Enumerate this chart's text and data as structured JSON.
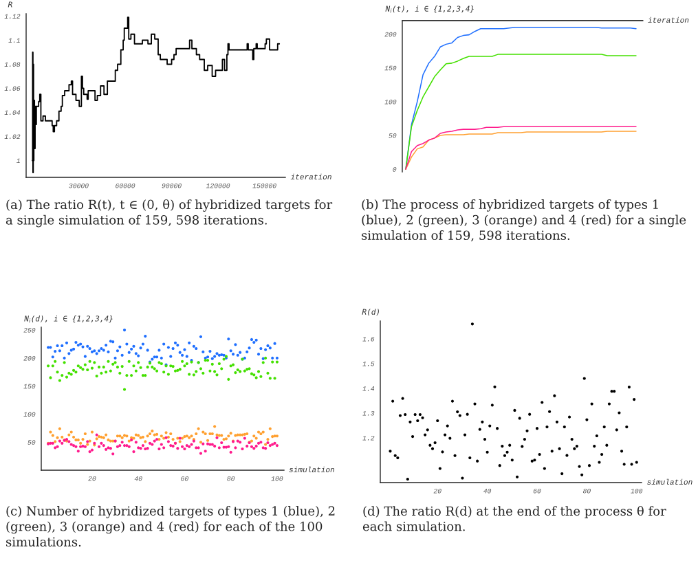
{
  "chart_data": [
    {
      "type": "step",
      "ylabel": "R",
      "xlabel": "iteration",
      "color": "#000000",
      "x": [
        0,
        200,
        400,
        600,
        800,
        1000,
        1400,
        1800,
        2200,
        2600,
        4080,
        4800,
        5530,
        6900,
        8450,
        12800,
        13500,
        14300,
        15700,
        17200,
        18600,
        19400,
        20900,
        23700,
        25200,
        26000,
        28200,
        30300,
        31700,
        32400,
        33200,
        35400,
        36100,
        39000,
        40500,
        42000,
        44100,
        46300,
        48500,
        52900,
        53600,
        55100,
        57200,
        58700,
        59400,
        61600,
        62300,
        63700,
        66000,
        71100,
        74700,
        76900,
        79100,
        81300,
        82700,
        87100,
        90000,
        91500,
        92900,
        101600,
        103100,
        106000,
        108100,
        111100,
        113300,
        116200,
        118400,
        122800,
        124200,
        125700,
        126400,
        127100,
        138800,
        139500,
        142400,
        143100,
        144600,
        145300,
        147500,
        150400,
        151200,
        153300,
        154000,
        158500,
        159598
      ],
      "values": [
        1.0,
        1.09,
        0.99,
        1.08,
        1.0,
        1.05,
        1.01,
        1.045,
        1.03,
        1.045,
        1.049,
        1.055,
        1.033,
        1.037,
        1.033,
        1.029,
        1.024,
        1.029,
        1.033,
        1.041,
        1.045,
        1.054,
        1.058,
        1.063,
        1.066,
        1.055,
        1.05,
        1.045,
        1.07,
        1.06,
        1.055,
        1.051,
        1.058,
        1.058,
        1.05,
        1.054,
        1.062,
        1.055,
        1.066,
        1.066,
        1.075,
        1.08,
        1.092,
        1.1,
        1.11,
        1.119,
        1.101,
        1.105,
        1.097,
        1.1,
        1.097,
        1.105,
        1.101,
        1.088,
        1.084,
        1.08,
        1.084,
        1.088,
        1.093,
        1.1,
        1.093,
        1.088,
        1.084,
        1.075,
        1.079,
        1.07,
        1.075,
        1.084,
        1.075,
        1.088,
        1.097,
        1.092,
        1.097,
        1.092,
        1.084,
        1.093,
        1.097,
        1.093,
        1.093,
        1.097,
        1.101,
        1.092,
        1.092,
        1.097,
        1.097
      ],
      "xlim": [
        -4000,
        163500
      ],
      "ylim": [
        0.986,
        1.122
      ],
      "xticks": [
        30000,
        60000,
        90000,
        120000,
        150000
      ],
      "yticks": [
        1,
        1.02,
        1.04,
        1.06,
        1.08,
        1.1,
        1.12
      ],
      "annotations": [
        "(a) The ratio R(t), t ∈ (0, θ) of hybridized targets for a single simulation of 159, 598 iterations."
      ]
    },
    {
      "type": "line",
      "ylabel": "N$_{i}$(t), i ∈ {1,2,3,4}",
      "xlabel": "iteration",
      "categories": [
        null,
        null,
        null,
        null,
        null,
        null,
        null,
        null,
        null,
        null,
        null,
        null,
        null,
        null,
        null,
        null,
        null,
        null,
        null,
        null,
        null,
        null,
        null,
        null,
        null,
        null,
        null,
        null,
        null,
        null,
        null,
        null,
        null,
        null,
        null,
        null,
        null,
        null,
        null,
        null,
        null
      ],
      "series": [
        {
          "color": "#1f6fff",
          "values": [
            0,
            66,
            100,
            140,
            157,
            167,
            181,
            185,
            187,
            195,
            198,
            199,
            204,
            208,
            208,
            208,
            208,
            208,
            209,
            210,
            210,
            210,
            210,
            210,
            210,
            210,
            210,
            210,
            210,
            210,
            210,
            210,
            210,
            210,
            209,
            209,
            209,
            209,
            209,
            209,
            208
          ]
        },
        {
          "color": "#44e000",
          "values": [
            0,
            63,
            87,
            107,
            122,
            137,
            147,
            156,
            157,
            160,
            164,
            167,
            167,
            167,
            167,
            167,
            170,
            170,
            170,
            170,
            170,
            170,
            170,
            170,
            170,
            170,
            170,
            170,
            170,
            170,
            170,
            170,
            170,
            170,
            170,
            168,
            168,
            168,
            168,
            168,
            168
          ]
        },
        {
          "color": "#ffa030",
          "values": [
            0,
            18,
            30,
            33,
            43,
            46,
            50,
            51,
            51,
            51,
            51,
            52,
            52,
            52,
            52,
            52,
            54,
            54,
            54,
            54,
            54,
            55,
            55,
            55,
            55,
            55,
            55,
            55,
            55,
            55,
            55,
            55,
            55,
            55,
            55,
            56,
            56,
            56,
            56,
            56,
            56
          ]
        },
        {
          "color": "#ff1a8c",
          "values": [
            0,
            26,
            35,
            38,
            43,
            46,
            53,
            55,
            56,
            58,
            59,
            59,
            59,
            60,
            62,
            62,
            62,
            63,
            63,
            63,
            63,
            63,
            63,
            63,
            63,
            63,
            63,
            63,
            63,
            63,
            63,
            63,
            63,
            63,
            63,
            63,
            63,
            63,
            63,
            63,
            63
          ]
        }
      ],
      "ylim": [
        -4,
        220
      ],
      "yticks": [
        0,
        50,
        100,
        150,
        200
      ],
      "tick_labels": "y",
      "ref_lines": [
        {
          "axis": "y",
          "value": 220
        }
      ],
      "annotations": [
        "(b) The process of hybridized targets of types 1 (blue), 2 (green), 3 (orange) and 4 (red) for a single simulation of 159, 598 iterations."
      ]
    },
    {
      "type": "scatter",
      "ylabel": "N$_{i}$(d), i ∈ {1,2,3,4}",
      "xlabel": "simulation",
      "marker": "circle",
      "x": [
        1,
        2,
        3,
        4,
        5,
        6,
        7,
        8,
        9,
        10,
        11,
        12,
        13,
        14,
        15,
        16,
        17,
        18,
        19,
        20,
        21,
        22,
        23,
        24,
        25,
        26,
        27,
        28,
        29,
        30,
        31,
        32,
        33,
        34,
        35,
        36,
        37,
        38,
        39,
        40,
        41,
        42,
        43,
        44,
        45,
        46,
        47,
        48,
        49,
        50,
        51,
        52,
        53,
        54,
        55,
        56,
        57,
        58,
        59,
        60,
        61,
        62,
        63,
        64,
        65,
        66,
        67,
        68,
        69,
        70,
        71,
        72,
        73,
        74,
        75,
        76,
        77,
        78,
        79,
        80,
        81,
        82,
        83,
        84,
        85,
        86,
        87,
        88,
        89,
        90,
        91,
        92,
        93,
        94,
        95,
        96,
        97,
        98,
        99,
        100
      ],
      "series": [
        {
          "color": "#1f6fff",
          "values": [
            219,
            219,
            202,
            212,
            222,
            213,
            222,
            200,
            227,
            208,
            214,
            216,
            228,
            223,
            225,
            220,
            203,
            221,
            217,
            211,
            213,
            208,
            213,
            217,
            214,
            223,
            211,
            230,
            229,
            200,
            213,
            220,
            205,
            250,
            225,
            210,
            216,
            221,
            208,
            204,
            218,
            225,
            239,
            214,
            193,
            198,
            202,
            202,
            214,
            200,
            225,
            188,
            219,
            203,
            217,
            227,
            223,
            210,
            205,
            215,
            203,
            227,
            196,
            221,
            217,
            192,
            238,
            211,
            200,
            202,
            212,
            199,
            203,
            208,
            205,
            206,
            205,
            200,
            234,
            213,
            207,
            224,
            205,
            210,
            198,
            200,
            211,
            218,
            233,
            228,
            232,
            207,
            217,
            199,
            215,
            222,
            218,
            200,
            226,
            200
          ]
        },
        {
          "color": "#44e000",
          "values": [
            186,
            165,
            186,
            194,
            175,
            160,
            169,
            192,
            166,
            173,
            171,
            178,
            175,
            186,
            183,
            180,
            188,
            179,
            194,
            182,
            192,
            168,
            184,
            173,
            184,
            175,
            194,
            177,
            189,
            192,
            184,
            173,
            185,
            144,
            169,
            194,
            169,
            186,
            177,
            192,
            183,
            169,
            169,
            184,
            191,
            184,
            181,
            177,
            192,
            190,
            175,
            186,
            171,
            186,
            185,
            177,
            178,
            180,
            194,
            186,
            190,
            171,
            193,
            170,
            176,
            192,
            181,
            173,
            196,
            196,
            177,
            189,
            176,
            170,
            190,
            181,
            198,
            203,
            162,
            186,
            188,
            174,
            179,
            176,
            198,
            177,
            180,
            181,
            172,
            170,
            165,
            176,
            167,
            192,
            200,
            173,
            164,
            193,
            164,
            193
          ]
        },
        {
          "color": "#ffa030",
          "values": [
            48,
            68,
            62,
            51,
            58,
            74,
            59,
            54,
            52,
            63,
            68,
            59,
            54,
            54,
            48,
            55,
            65,
            46,
            52,
            68,
            45,
            56,
            60,
            59,
            58,
            63,
            54,
            52,
            52,
            52,
            61,
            61,
            58,
            62,
            61,
            52,
            58,
            57,
            63,
            62,
            58,
            59,
            51,
            61,
            65,
            70,
            63,
            64,
            55,
            61,
            57,
            67,
            59,
            65,
            55,
            48,
            57,
            51,
            57,
            60,
            61,
            58,
            61,
            55,
            65,
            74,
            50,
            68,
            65,
            53,
            65,
            65,
            78,
            63,
            62,
            62,
            55,
            56,
            61,
            66,
            52,
            62,
            63,
            63,
            63,
            64,
            65,
            50,
            52,
            61,
            57,
            68,
            65,
            68,
            46,
            55,
            74,
            60,
            61,
            61
          ]
        },
        {
          "color": "#ff1a8c",
          "values": [
            47,
            48,
            48,
            40,
            42,
            52,
            48,
            53,
            55,
            51,
            46,
            44,
            42,
            34,
            42,
            43,
            42,
            51,
            33,
            36,
            48,
            63,
            42,
            48,
            44,
            37,
            40,
            39,
            29,
            52,
            42,
            44,
            50,
            44,
            44,
            42,
            54,
            33,
            50,
            40,
            39,
            44,
            38,
            39,
            48,
            46,
            52,
            55,
            38,
            46,
            40,
            58,
            51,
            44,
            43,
            48,
            39,
            57,
            42,
            38,
            44,
            42,
            46,
            52,
            40,
            40,
            30,
            47,
            34,
            47,
            46,
            46,
            43,
            58,
            40,
            49,
            41,
            41,
            42,
            32,
            51,
            40,
            52,
            50,
            38,
            57,
            43,
            49,
            42,
            39,
            43,
            48,
            50,
            40,
            39,
            49,
            44,
            46,
            48,
            44
          ]
        }
      ],
      "xlim": [
        -2,
        103
      ],
      "ylim": [
        0,
        255
      ],
      "xticks": [
        20,
        40,
        60,
        80,
        100
      ],
      "yticks": [
        50,
        100,
        150,
        200,
        250
      ],
      "annotations": [
        "(c) Number of hybridized targets of types 1 (blue), 2 (green), 3 (orange) and 4 (red) for each of the 100 simulations."
      ]
    },
    {
      "type": "scatter",
      "ylabel": "R(d)",
      "xlabel": "simulation",
      "marker": "circle",
      "color": "#000000",
      "x": [
        1,
        2,
        3,
        4,
        5,
        6,
        7,
        8,
        9,
        10,
        11,
        12,
        13,
        14,
        15,
        16,
        17,
        18,
        19,
        20,
        21,
        22,
        23,
        24,
        25,
        26,
        27,
        28,
        29,
        30,
        31,
        32,
        33,
        34,
        35,
        36,
        37,
        38,
        39,
        40,
        41,
        42,
        43,
        44,
        45,
        46,
        47,
        48,
        49,
        50,
        51,
        52,
        53,
        54,
        55,
        56,
        57,
        58,
        59,
        60,
        61,
        62,
        63,
        64,
        65,
        66,
        67,
        68,
        69,
        70,
        71,
        72,
        73,
        74,
        75,
        76,
        77,
        78,
        79,
        80,
        81,
        82,
        83,
        84,
        85,
        86,
        87,
        88,
        89,
        90,
        91,
        92,
        93,
        94,
        95,
        96,
        97,
        98,
        99,
        100
      ],
      "values": [
        1.146,
        1.348,
        1.128,
        1.119,
        1.29,
        1.359,
        1.294,
        1.033,
        1.264,
        1.205,
        1.294,
        1.269,
        1.294,
        1.281,
        1.212,
        1.232,
        1.17,
        1.156,
        1.18,
        1.269,
        1.076,
        1.143,
        1.212,
        1.248,
        1.198,
        1.348,
        1.128,
        1.305,
        1.29,
        1.037,
        1.212,
        1.295,
        1.119,
        1.66,
        1.337,
        1.106,
        1.234,
        1.264,
        1.194,
        1.142,
        1.248,
        1.332,
        1.406,
        1.238,
        1.088,
        1.166,
        1.128,
        1.142,
        1.17,
        1.11,
        1.311,
        1.042,
        1.279,
        1.165,
        1.194,
        1.228,
        1.295,
        1.106,
        1.11,
        1.238,
        1.133,
        1.343,
        1.076,
        1.244,
        1.306,
        1.146,
        1.37,
        1.264,
        1.156,
        1.055,
        1.244,
        1.129,
        1.284,
        1.194,
        1.156,
        1.166,
        1.084,
        1.05,
        1.44,
        1.273,
        1.088,
        1.337,
        1.166,
        1.208,
        1.101,
        1.133,
        1.244,
        1.17,
        1.337,
        1.388,
        1.388,
        1.232,
        1.301,
        1.146,
        1.093,
        1.244,
        1.405,
        1.093,
        1.355,
        1.101
      ],
      "xlim": [
        -3,
        102
      ],
      "ylim": [
        1.019,
        1.672
      ],
      "xticks": [
        20,
        40,
        60,
        80,
        100
      ],
      "yticks": [
        1.2,
        1.3,
        1.4,
        1.5,
        1.6
      ],
      "annotations": [
        "(d) The ratio R(d) at the end of the process θ for each simulation."
      ]
    }
  ]
}
